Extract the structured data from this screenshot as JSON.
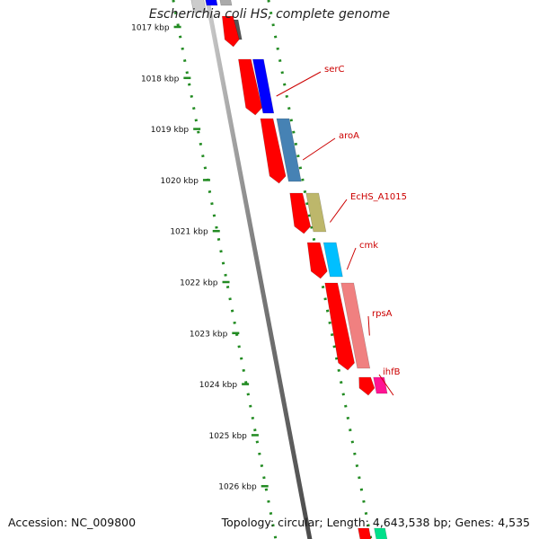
{
  "map": {
    "title": "Escherichia coli HS, complete genome",
    "accession": "Accession: NC_009800",
    "summary": "Topology: circular; Length: 4,643,538 bp; Genes: 4,535"
  },
  "ticks": [
    "1017 kbp",
    "1018 kbp",
    "1019 kbp",
    "1020 kbp",
    "1021 kbp",
    "1022 kbp",
    "1023 kbp",
    "1024 kbp",
    "1025 kbp",
    "1026 kbp"
  ],
  "genes": [
    {
      "name": "serC",
      "color": "#0000ff"
    },
    {
      "name": "aroA",
      "color": "#4682b4"
    },
    {
      "name": "EcHS_A1015",
      "color": "#bdb76b"
    },
    {
      "name": "cmk",
      "color": "#00bfff"
    },
    {
      "name": "rpsA",
      "color": "#f08080"
    },
    {
      "name": "ihfB",
      "color": "#ff1493"
    }
  ],
  "colors": {
    "cds": "#ff0000",
    "gene_label": "#cc0000",
    "tick": "#228b22",
    "backbone": "#7a7a7a",
    "partial_top": "#555555",
    "partial_bottom": "#00e08a"
  }
}
